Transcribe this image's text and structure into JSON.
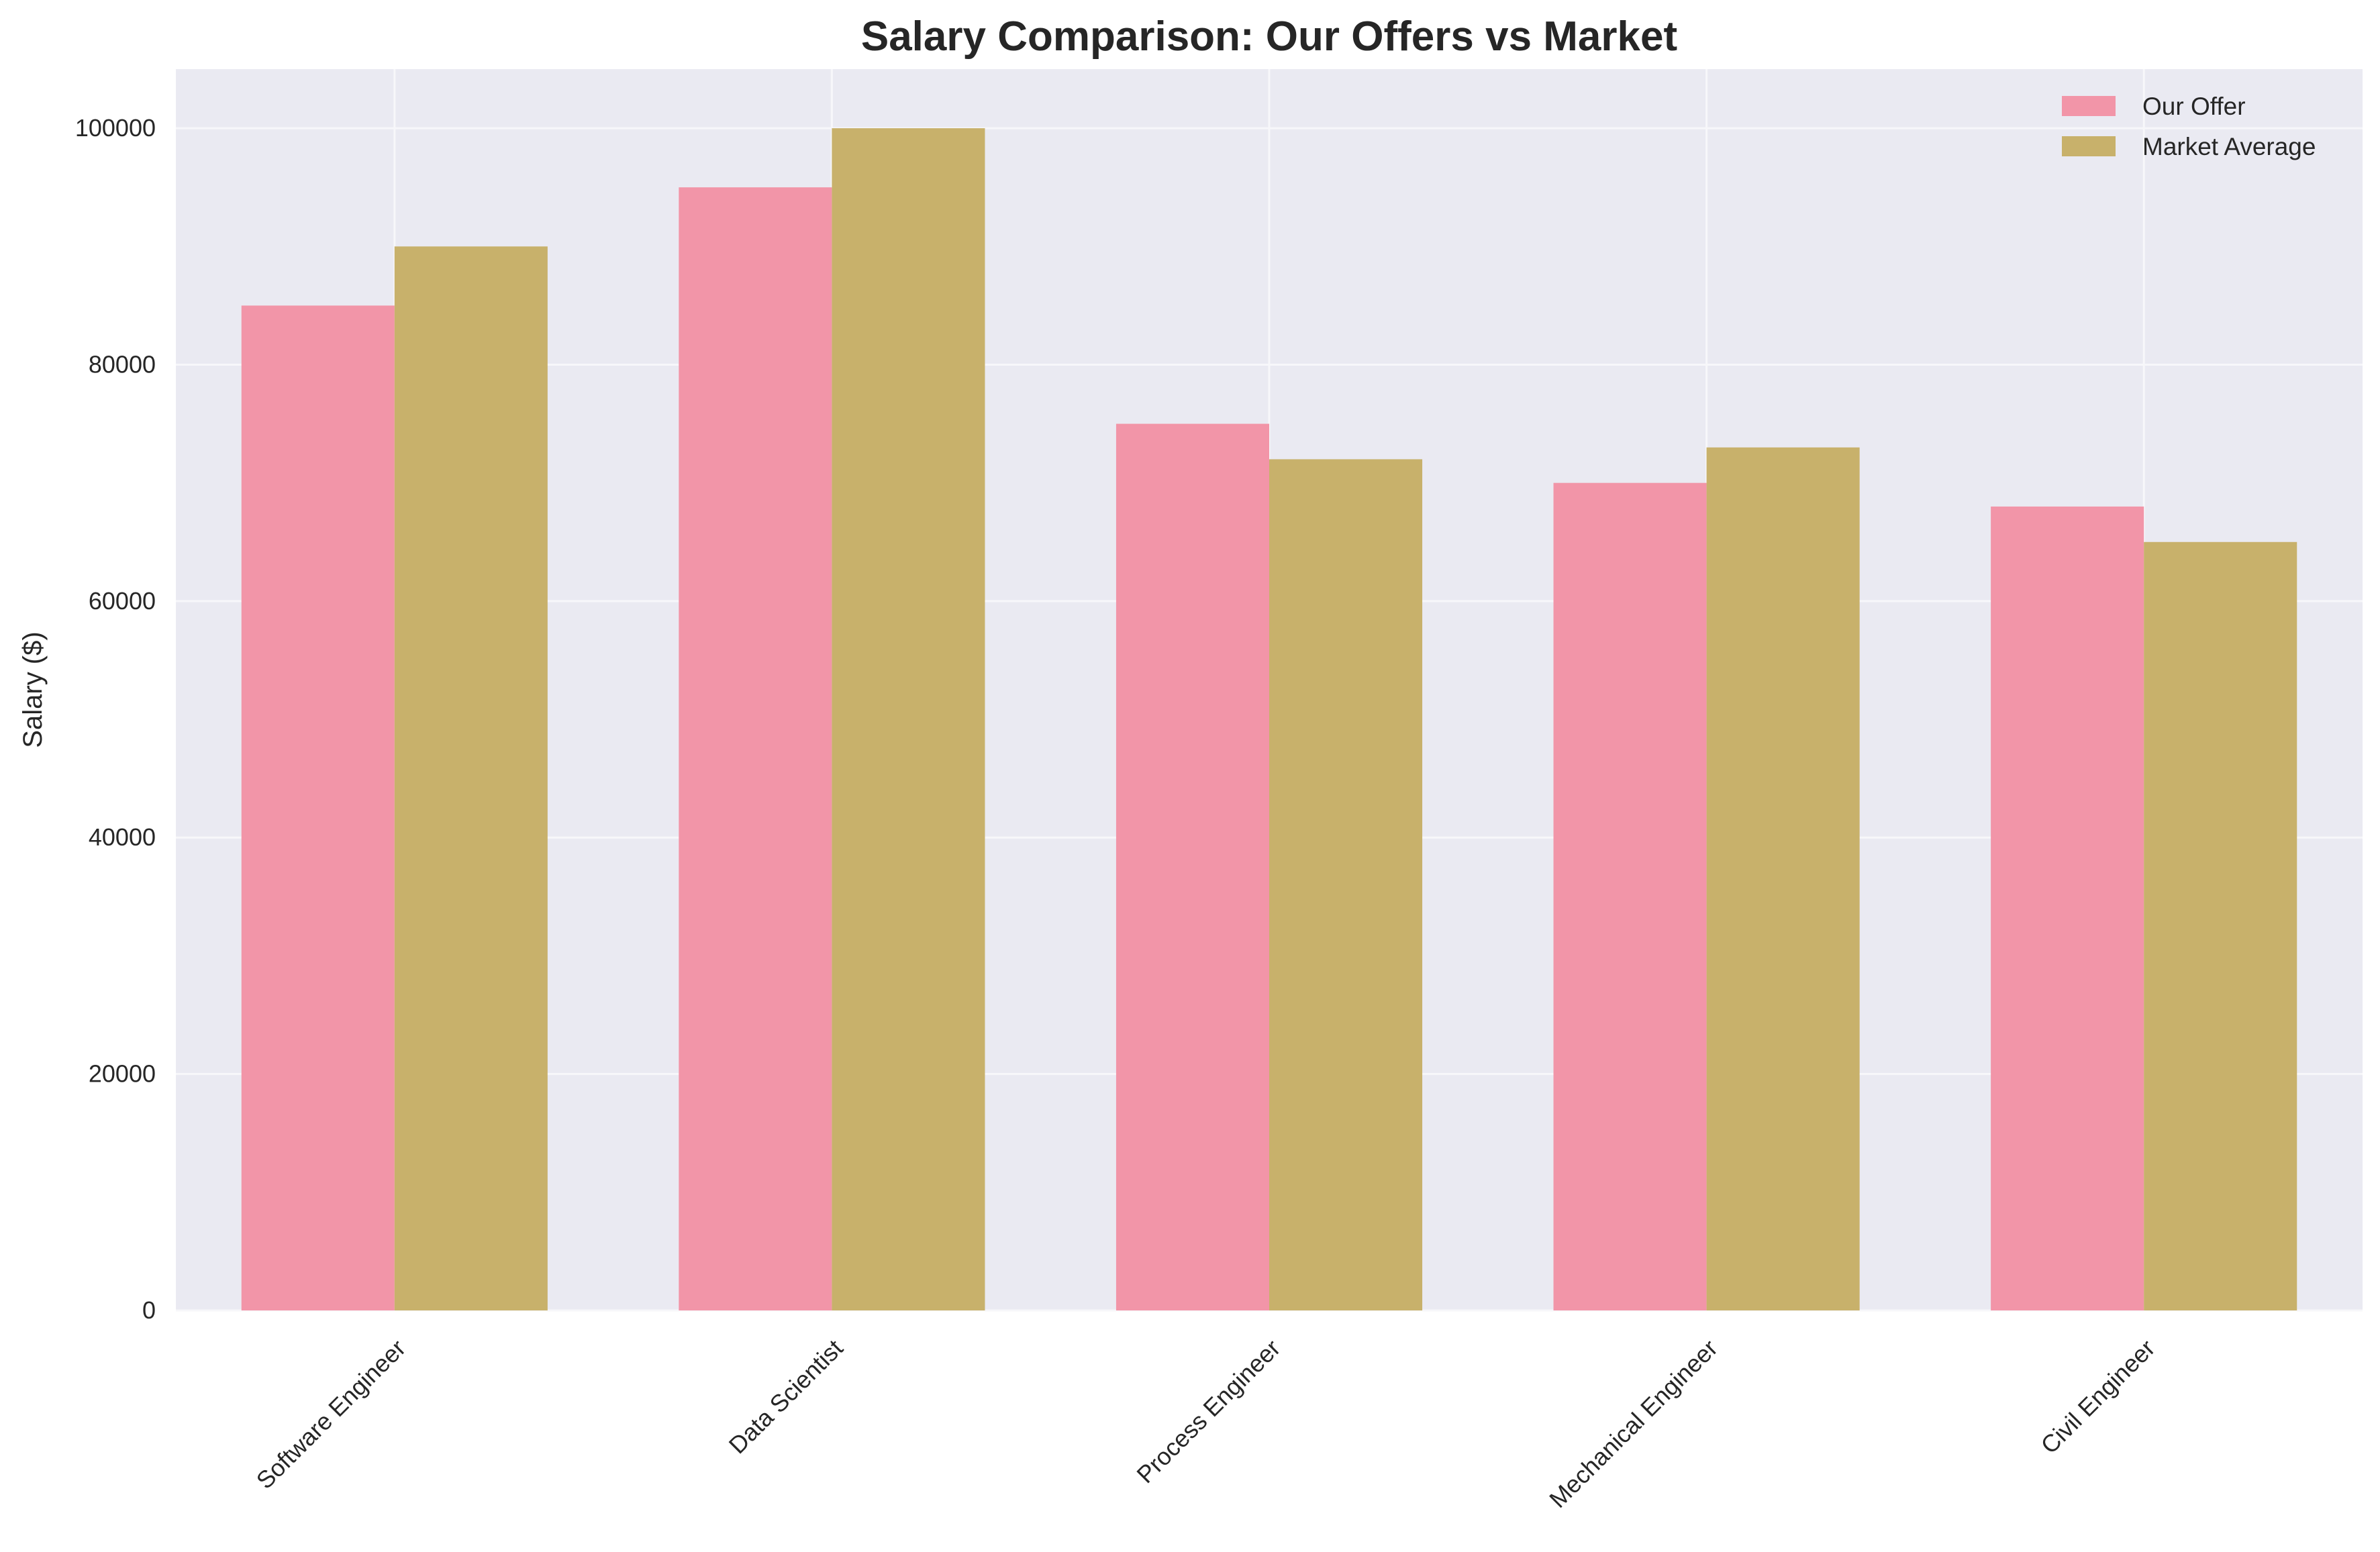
{
  "chart_data": {
    "type": "bar",
    "title": "Salary Comparison: Our Offers vs Market",
    "xlabel": "",
    "ylabel": "Salary ($)",
    "categories": [
      "Software Engineer",
      "Data Scientist",
      "Process Engineer",
      "Mechanical Engineer",
      "Civil Engineer"
    ],
    "series": [
      {
        "name": "Our Offer",
        "values": [
          85000,
          95000,
          75000,
          70000,
          68000
        ],
        "color": "#f295a8"
      },
      {
        "name": "Market Average",
        "values": [
          90000,
          100000,
          72000,
          73000,
          65000
        ],
        "color": "#c8b16b"
      }
    ],
    "ylim": [
      0,
      105000
    ],
    "yticks": [
      0,
      20000,
      40000,
      60000,
      80000,
      100000
    ],
    "grid": true,
    "legend": "top-right",
    "plot_background": "#eaeaf2",
    "grid_color": "#f7f7fa"
  }
}
